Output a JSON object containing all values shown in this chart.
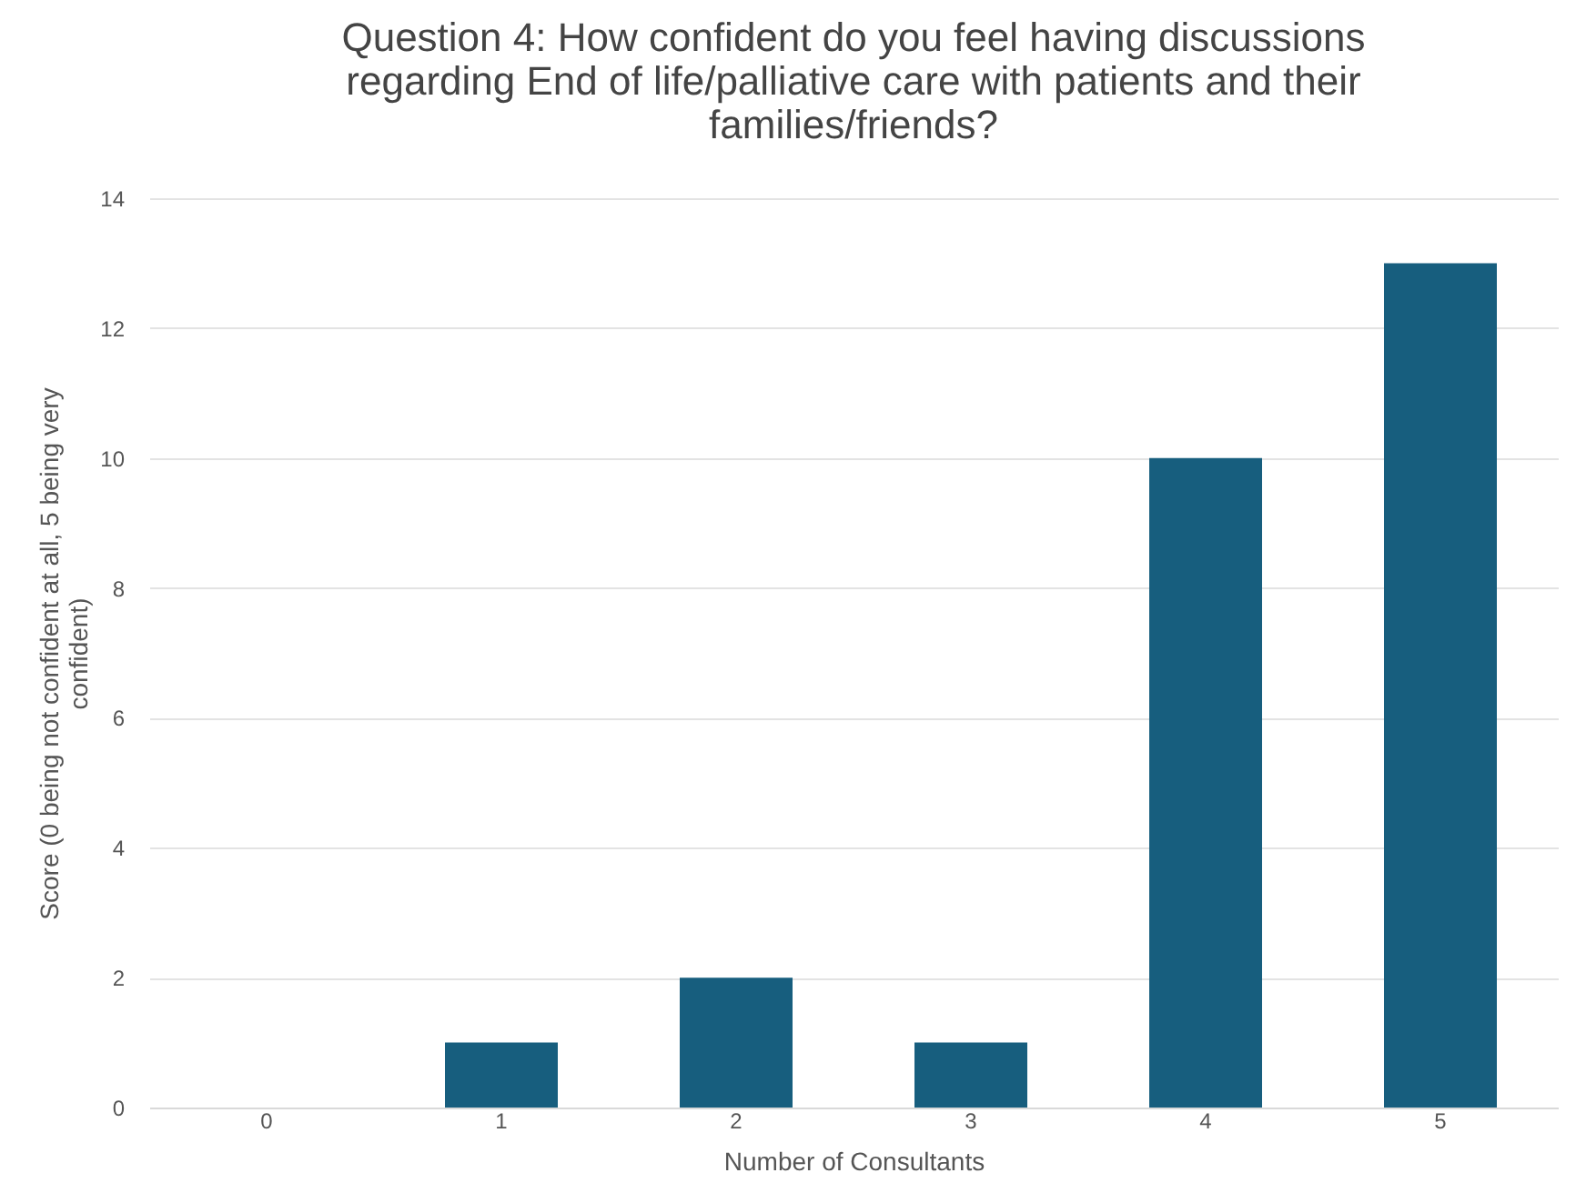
{
  "chart_data": {
    "type": "bar",
    "title": "Question 4: How confident do you feel having discussions regarding End of life/palliative care with patients and their families/friends?",
    "xlabel": "Number of Consultants",
    "ylabel": "Score (0 being not confident at all, 5 being very confident)",
    "categories": [
      "0",
      "1",
      "2",
      "3",
      "4",
      "5"
    ],
    "values": [
      0,
      1,
      2,
      1,
      10,
      13
    ],
    "color": "#175e7e",
    "ylim": [
      0,
      14
    ],
    "yticks": [
      0,
      2,
      4,
      6,
      8,
      10,
      12,
      14
    ],
    "grid": "y"
  }
}
